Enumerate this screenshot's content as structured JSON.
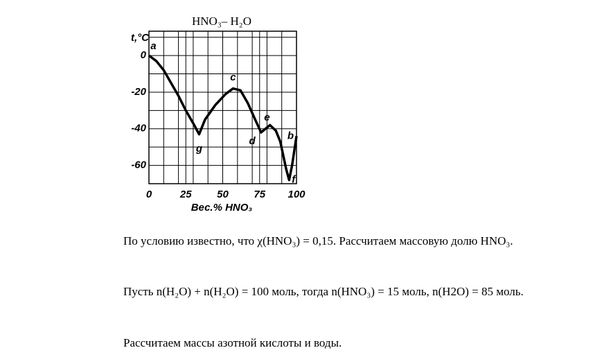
{
  "chart_data": {
    "type": "line",
    "title": "HNO₃– H₂O",
    "ylabel": "t,°C",
    "xlabel": "Вес.% HNO₃",
    "x": [
      0,
      5,
      10,
      15,
      20,
      25,
      30,
      34,
      38,
      45,
      52,
      57,
      62,
      67,
      72,
      76,
      79,
      82,
      86,
      89,
      93,
      95,
      97,
      100
    ],
    "series": [
      {
        "color": "#000000",
        "values": [
          0,
          -3,
          -8,
          -15,
          -22,
          -30,
          -37,
          -43,
          -35,
          -27,
          -21,
          -18,
          -19,
          -26,
          -35,
          -42,
          -40,
          -38,
          -41,
          -47,
          -62,
          -68,
          -60,
          -44
        ]
      }
    ],
    "xlim": [
      0,
      100
    ],
    "ylim": [
      -70,
      13.3
    ],
    "xticks": [
      0,
      25,
      50,
      75,
      100
    ],
    "yticks": [
      0,
      -20,
      -40,
      -60
    ],
    "xgrid": [
      10,
      20,
      30,
      40,
      60,
      70,
      80,
      90
    ],
    "ygrid": [
      10,
      -10,
      -30,
      -50
    ],
    "grid": true,
    "annotations": [
      {
        "text": "a",
        "x": 3,
        "y": 5
      },
      {
        "text": "g",
        "x": 34,
        "y": -51
      },
      {
        "text": "c",
        "x": 57,
        "y": -12
      },
      {
        "text": "d",
        "x": 70,
        "y": -47
      },
      {
        "text": "e",
        "x": 80,
        "y": -34
      },
      {
        "text": "b",
        "x": 96,
        "y": -44
      },
      {
        "text": "f",
        "x": 98,
        "y": -68
      }
    ]
  },
  "paragraphs": [
    "По условию известно, что χ(HNO₃) = 0,15. Рассчитаем массовую долю HNO₃.",
    "Пусть n(H₂O) + n(H₂O) = 100 моль, тогда n(HNO₃) = 15 моль, n(H2O) = 85 моль.",
    "Рассчитаем массы азотной кислоты и воды."
  ]
}
